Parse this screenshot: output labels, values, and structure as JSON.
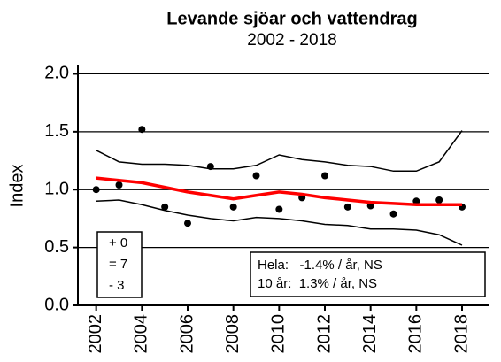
{
  "chart_data": {
    "type": "line",
    "title": "Levande sjöar och vattendrag",
    "subtitle": "2002 - 2018",
    "y_label": "Index",
    "x": [
      2002,
      2003,
      2004,
      2005,
      2006,
      2007,
      2008,
      2009,
      2010,
      2011,
      2012,
      2013,
      2014,
      2015,
      2016,
      2017,
      2018
    ],
    "series": [
      {
        "color": "#000000",
        "style": "points",
        "values": [
          1.0,
          1.04,
          1.52,
          0.85,
          0.71,
          1.2,
          0.85,
          1.12,
          0.83,
          0.93,
          1.12,
          0.85,
          0.86,
          0.79,
          0.9,
          0.91,
          0.85
        ]
      },
      {
        "color": "#ff0000",
        "style": "trend",
        "values": [
          1.1,
          1.08,
          1.06,
          1.02,
          0.98,
          0.95,
          0.92,
          0.95,
          0.98,
          0.96,
          0.93,
          0.91,
          0.89,
          0.88,
          0.87,
          0.87,
          0.87
        ]
      },
      {
        "color": "#000000",
        "style": "band",
        "values": [
          1.34,
          1.24,
          1.22,
          1.22,
          1.21,
          1.18,
          1.18,
          1.21,
          1.3,
          1.26,
          1.24,
          1.21,
          1.2,
          1.16,
          1.16,
          1.24,
          1.51
        ]
      },
      {
        "color": "#000000",
        "style": "band",
        "values": [
          0.9,
          0.91,
          0.87,
          0.82,
          0.78,
          0.75,
          0.73,
          0.76,
          0.75,
          0.73,
          0.7,
          0.69,
          0.66,
          0.66,
          0.65,
          0.61,
          0.52
        ]
      }
    ],
    "xlim": [
      2001.2,
      2019.2
    ],
    "xticks": [
      2002,
      2004,
      2006,
      2008,
      2010,
      2012,
      2014,
      2016,
      2018
    ],
    "ylim": [
      0,
      2.08
    ],
    "yticks": [
      {
        "value": 0,
        "label": "0.0"
      },
      0.5,
      {
        "value": 1,
        "label": "1.0"
      },
      1.5,
      {
        "value": 2,
        "label": "2.0"
      }
    ],
    "grid": true,
    "count_box": [
      "+ 0",
      "= 7",
      "- 3"
    ],
    "trend_box": [
      "Hela:   -1.4% / år, NS",
      "10 år:  1.3% / år, NS"
    ]
  }
}
